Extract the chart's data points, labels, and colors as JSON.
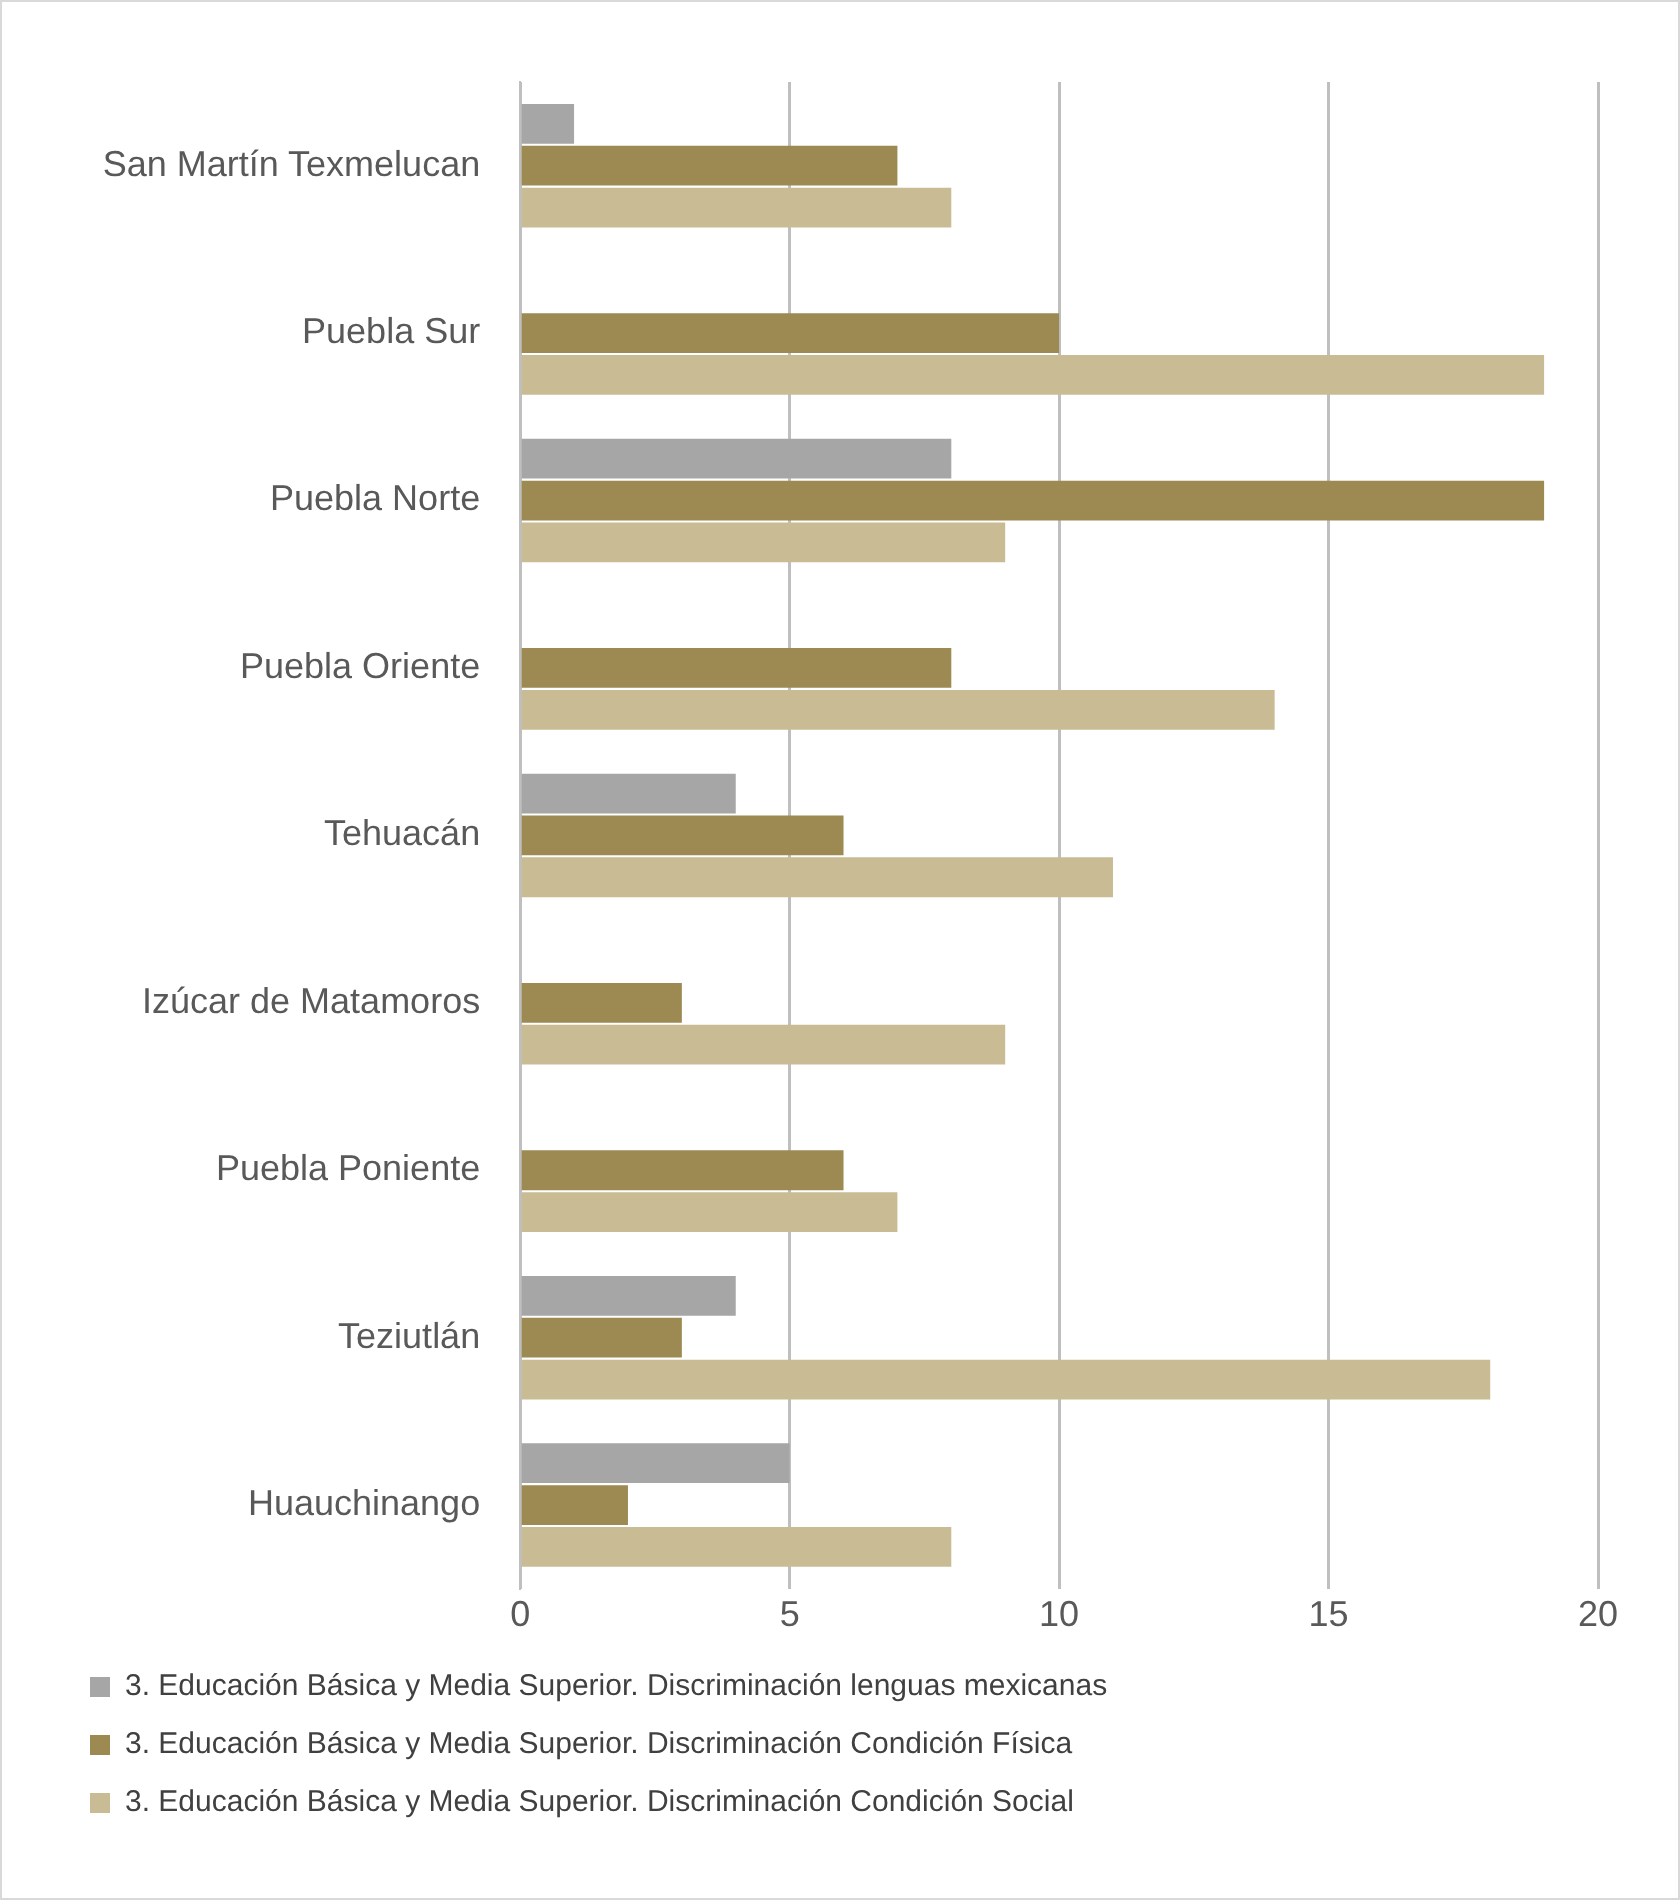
{
  "chart_data": {
    "type": "bar",
    "orientation": "horizontal",
    "categories": [
      "San Martín Texmelucan",
      "Puebla Sur",
      "Puebla Norte",
      "Puebla Oriente",
      "Tehuacán",
      "Izúcar de Matamoros",
      "Puebla Poniente",
      "Teziutlán",
      "Huauchinango"
    ],
    "series": [
      {
        "name": "3. Educación Básica y Media Superior. Discriminación lenguas mexicanas",
        "color": "#a6a6a6",
        "values": [
          1,
          0,
          8,
          0,
          4,
          0,
          0,
          4,
          5
        ]
      },
      {
        "name": "3. Educación Básica y Media Superior. Discriminación Condición Física",
        "color": "#9c8a52",
        "values": [
          7,
          10,
          19,
          8,
          6,
          3,
          6,
          3,
          2
        ]
      },
      {
        "name": "3. Educación Básica y Media Superior. Discriminación Condición Social",
        "color": "#c9bc94",
        "values": [
          8,
          19,
          9,
          14,
          11,
          9,
          7,
          18,
          8
        ]
      }
    ],
    "xlim": [
      0,
      20
    ],
    "xticks": [
      0,
      5,
      10,
      15,
      20
    ],
    "grid": "x",
    "legend": "bottom"
  }
}
